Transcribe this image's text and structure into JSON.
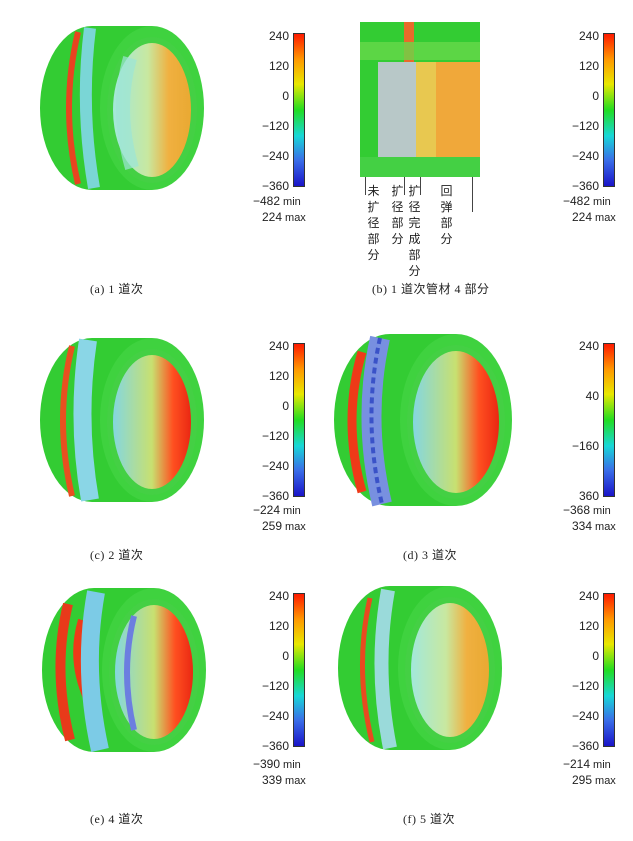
{
  "colorbar_gradient": [
    "#ff1a00",
    "#ff9a00",
    "#e8e800",
    "#22dd22",
    "#18d7d7",
    "#3a6ee8",
    "#1a14c8"
  ],
  "panels": [
    {
      "id": "a",
      "caption": "(a) 1 道次",
      "ticks": [
        "240",
        "120",
        "0",
        "−120",
        "−240",
        "−360"
      ],
      "min_value": "−482",
      "min_label": "min",
      "max_value": "224",
      "max_label": "max"
    },
    {
      "id": "b",
      "caption": "(b) 1 道次管材 4 部分",
      "ticks": [
        "240",
        "120",
        "0",
        "−120",
        "−240",
        "−360"
      ],
      "min_value": "−482",
      "min_label": "min",
      "max_value": "224",
      "max_label": "max",
      "part_labels": [
        "未扩径部分",
        "扩径部分",
        "扩径完成部分",
        "回弹部分"
      ]
    },
    {
      "id": "c",
      "caption": "(c) 2 道次",
      "ticks": [
        "240",
        "120",
        "0",
        "−120",
        "−240",
        "−360"
      ],
      "min_value": "−224",
      "min_label": "min",
      "max_value": "259",
      "max_label": "max"
    },
    {
      "id": "d",
      "caption": "(d) 3 道次",
      "ticks": [
        "240",
        "40",
        "−160",
        "360"
      ],
      "min_value": "−368",
      "min_label": "min",
      "max_value": "334",
      "max_label": "max"
    },
    {
      "id": "e",
      "caption": "(e) 4 道次",
      "ticks": [
        "240",
        "120",
        "0",
        "−120",
        "−240",
        "−360"
      ],
      "min_value": "−390",
      "min_label": "min",
      "max_value": "339",
      "max_label": "max"
    },
    {
      "id": "f",
      "caption": "(f) 5 道次",
      "ticks": [
        "240",
        "120",
        "0",
        "−120",
        "−240",
        "−360"
      ],
      "min_value": "−214",
      "min_label": "min",
      "max_value": "295",
      "max_label": "max"
    }
  ]
}
